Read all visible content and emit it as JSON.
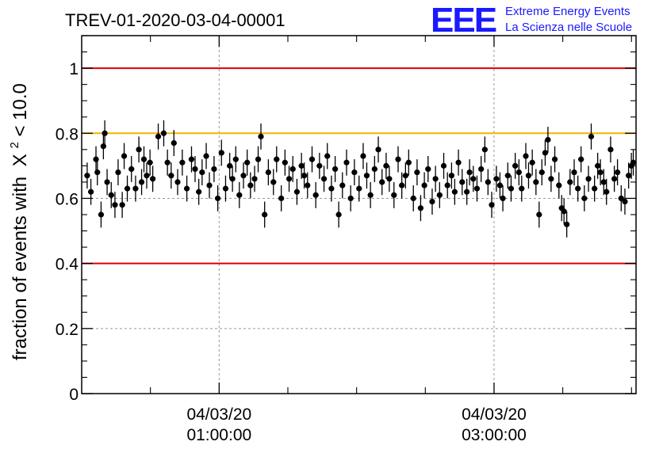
{
  "title": "TREV-01-2020-03-04-00001",
  "logo": {
    "mark": "EEE",
    "line1": "Extreme Energy Events",
    "line2": "La Scienza nelle Scuole",
    "color": "#1a1aff"
  },
  "chart_data": {
    "type": "scatter",
    "title": "TREV-01-2020-03-04-00001",
    "xlabel": "",
    "ylabel": "fraction of events with",
    "ylabel_math": {
      "symbol": "X",
      "superscript": "2",
      "suffix": " < 10.0"
    },
    "xlim": [
      0.0,
      4.033
    ],
    "ylim": [
      0,
      1.1
    ],
    "x_ticks": [
      {
        "x": 1.0,
        "date": "04/03/20",
        "time": "01:00:00"
      },
      {
        "x": 3.0,
        "date": "04/03/20",
        "time": "03:00:00"
      }
    ],
    "y_ticks": [
      {
        "y": 0,
        "label": "0"
      },
      {
        "y": 0.2,
        "label": "0.2"
      },
      {
        "y": 0.4,
        "label": "0.4"
      },
      {
        "y": 0.6,
        "label": "0.6"
      },
      {
        "y": 0.8,
        "label": "0.8"
      },
      {
        "y": 1,
        "label": "1"
      }
    ],
    "grid": true,
    "reference_lines": [
      {
        "y": 1.0,
        "color": "#dd0000"
      },
      {
        "y": 0.8,
        "color": "#f0b400"
      },
      {
        "y": 0.4,
        "color": "#dd0000"
      }
    ],
    "point_color": "#000000",
    "error": 0.04,
    "series": [
      {
        "values": [
          [
            0.04,
            0.67
          ],
          [
            0.067,
            0.62
          ],
          [
            0.104,
            0.72
          ],
          [
            0.114,
            0.68
          ],
          [
            0.141,
            0.55
          ],
          [
            0.158,
            0.76
          ],
          [
            0.168,
            0.8
          ],
          [
            0.185,
            0.65
          ],
          [
            0.215,
            0.61
          ],
          [
            0.242,
            0.58
          ],
          [
            0.265,
            0.68
          ],
          [
            0.295,
            0.58
          ],
          [
            0.309,
            0.73
          ],
          [
            0.332,
            0.63
          ],
          [
            0.362,
            0.69
          ],
          [
            0.392,
            0.63
          ],
          [
            0.416,
            0.75
          ],
          [
            0.436,
            0.65
          ],
          [
            0.453,
            0.72
          ],
          [
            0.473,
            0.67
          ],
          [
            0.497,
            0.71
          ],
          [
            0.517,
            0.66
          ],
          [
            0.557,
            0.79
          ],
          [
            0.597,
            0.8
          ],
          [
            0.624,
            0.71
          ],
          [
            0.651,
            0.67
          ],
          [
            0.671,
            0.77
          ],
          [
            0.698,
            0.65
          ],
          [
            0.732,
            0.71
          ],
          [
            0.765,
            0.63
          ],
          [
            0.799,
            0.72
          ],
          [
            0.825,
            0.69
          ],
          [
            0.852,
            0.62
          ],
          [
            0.876,
            0.68
          ],
          [
            0.906,
            0.73
          ],
          [
            0.929,
            0.64
          ],
          [
            0.963,
            0.69
          ],
          [
            0.99,
            0.6
          ],
          [
            1.017,
            0.74
          ],
          [
            1.047,
            0.63
          ],
          [
            1.077,
            0.7
          ],
          [
            1.097,
            0.66
          ],
          [
            1.121,
            0.72
          ],
          [
            1.147,
            0.61
          ],
          [
            1.177,
            0.67
          ],
          [
            1.204,
            0.71
          ],
          [
            1.228,
            0.64
          ],
          [
            1.258,
            0.66
          ],
          [
            1.284,
            0.72
          ],
          [
            1.304,
            0.79
          ],
          [
            1.331,
            0.55
          ],
          [
            1.358,
            0.68
          ],
          [
            1.395,
            0.65
          ],
          [
            1.418,
            0.72
          ],
          [
            1.452,
            0.6
          ],
          [
            1.479,
            0.71
          ],
          [
            1.509,
            0.66
          ],
          [
            1.536,
            0.69
          ],
          [
            1.566,
            0.62
          ],
          [
            1.599,
            0.7
          ],
          [
            1.619,
            0.67
          ],
          [
            1.643,
            0.64
          ],
          [
            1.676,
            0.72
          ],
          [
            1.703,
            0.61
          ],
          [
            1.73,
            0.7
          ],
          [
            1.763,
            0.66
          ],
          [
            1.787,
            0.73
          ],
          [
            1.817,
            0.63
          ],
          [
            1.844,
            0.69
          ],
          [
            1.87,
            0.55
          ],
          [
            1.897,
            0.64
          ],
          [
            1.927,
            0.71
          ],
          [
            1.957,
            0.6
          ],
          [
            1.984,
            0.68
          ],
          [
            2.018,
            0.63
          ],
          [
            2.048,
            0.73
          ],
          [
            2.074,
            0.67
          ],
          [
            2.101,
            0.61
          ],
          [
            2.131,
            0.69
          ],
          [
            2.158,
            0.75
          ],
          [
            2.185,
            0.65
          ],
          [
            2.215,
            0.7
          ],
          [
            2.238,
            0.66
          ],
          [
            2.272,
            0.61
          ],
          [
            2.302,
            0.72
          ],
          [
            2.329,
            0.64
          ],
          [
            2.356,
            0.67
          ],
          [
            2.379,
            0.71
          ],
          [
            2.413,
            0.6
          ],
          [
            2.44,
            0.68
          ],
          [
            2.466,
            0.57
          ],
          [
            2.493,
            0.64
          ],
          [
            2.52,
            0.69
          ],
          [
            2.55,
            0.59
          ],
          [
            2.574,
            0.66
          ],
          [
            2.604,
            0.61
          ],
          [
            2.634,
            0.7
          ],
          [
            2.661,
            0.64
          ],
          [
            2.691,
            0.67
          ],
          [
            2.714,
            0.62
          ],
          [
            2.741,
            0.71
          ],
          [
            2.768,
            0.65
          ],
          [
            2.802,
            0.62
          ],
          [
            2.822,
            0.68
          ],
          [
            2.849,
            0.66
          ],
          [
            2.876,
            0.63
          ],
          [
            2.906,
            0.69
          ],
          [
            2.933,
            0.75
          ],
          [
            2.956,
            0.65
          ],
          [
            2.983,
            0.58
          ],
          [
            3.017,
            0.66
          ],
          [
            3.043,
            0.64
          ],
          [
            3.064,
            0.6
          ],
          [
            3.1,
            0.67
          ],
          [
            3.124,
            0.63
          ],
          [
            3.154,
            0.7
          ],
          [
            3.181,
            0.68
          ],
          [
            3.201,
            0.63
          ],
          [
            3.231,
            0.73
          ],
          [
            3.251,
            0.67
          ],
          [
            3.278,
            0.71
          ],
          [
            3.305,
            0.65
          ],
          [
            3.328,
            0.55
          ],
          [
            3.348,
            0.68
          ],
          [
            3.372,
            0.74
          ],
          [
            3.392,
            0.78
          ],
          [
            3.415,
            0.66
          ],
          [
            3.442,
            0.72
          ],
          [
            3.472,
            0.64
          ],
          [
            3.492,
            0.57
          ],
          [
            3.509,
            0.56
          ],
          [
            3.529,
            0.52
          ],
          [
            3.553,
            0.65
          ],
          [
            3.583,
            0.68
          ],
          [
            3.61,
            0.63
          ],
          [
            3.633,
            0.72
          ],
          [
            3.657,
            0.6
          ],
          [
            3.687,
            0.66
          ],
          [
            3.707,
            0.79
          ],
          [
            3.731,
            0.63
          ],
          [
            3.754,
            0.7
          ],
          [
            3.774,
            0.68
          ],
          [
            3.798,
            0.65
          ],
          [
            3.818,
            0.62
          ],
          [
            3.848,
            0.75
          ],
          [
            3.875,
            0.66
          ],
          [
            3.898,
            0.68
          ],
          [
            3.925,
            0.6
          ],
          [
            3.952,
            0.59
          ],
          [
            3.979,
            0.67
          ],
          [
            3.999,
            0.7
          ],
          [
            4.013,
            0.71
          ]
        ]
      }
    ]
  }
}
